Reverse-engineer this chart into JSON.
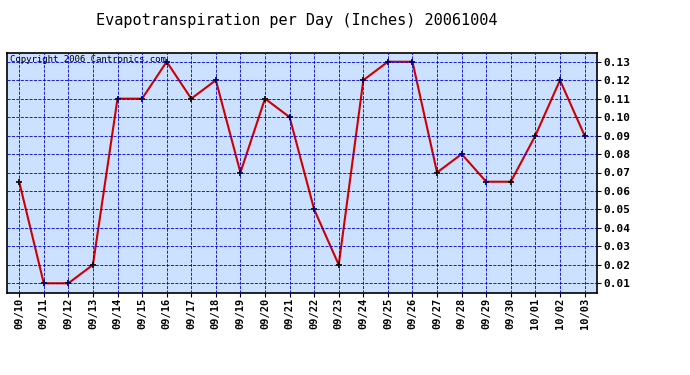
{
  "title": "Evapotranspiration per Day (Inches) 20061004",
  "copyright": "Copyright 2006 Cantronics.com",
  "x_labels": [
    "09/10",
    "09/11",
    "09/12",
    "09/13",
    "09/14",
    "09/15",
    "09/16",
    "09/17",
    "09/18",
    "09/19",
    "09/20",
    "09/21",
    "09/22",
    "09/23",
    "09/24",
    "09/25",
    "09/26",
    "09/27",
    "09/28",
    "09/29",
    "09/30",
    "10/01",
    "10/02",
    "10/03"
  ],
  "y_values": [
    0.065,
    0.01,
    0.01,
    0.02,
    0.11,
    0.11,
    0.13,
    0.11,
    0.12,
    0.07,
    0.11,
    0.1,
    0.05,
    0.02,
    0.12,
    0.13,
    0.13,
    0.07,
    0.08,
    0.065,
    0.065,
    0.09,
    0.12,
    0.09
  ],
  "ylim_min": 0.005,
  "ylim_max": 0.135,
  "yticks": [
    0.01,
    0.02,
    0.03,
    0.04,
    0.05,
    0.06,
    0.07,
    0.08,
    0.09,
    0.1,
    0.11,
    0.12,
    0.13
  ],
  "line_color": "#cc0000",
  "marker_color": "#000000",
  "bg_color": "#cce0ff",
  "grid_color": "#0000cc",
  "title_fontsize": 11,
  "tick_fontsize": 7.5,
  "ytick_fontsize": 8,
  "copyright_fontsize": 6.5
}
